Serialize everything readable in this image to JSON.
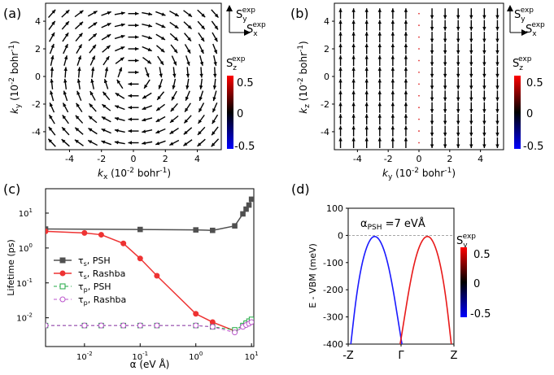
{
  "chart_data": [
    {
      "panel_label": "(a)",
      "type": "quiver",
      "xlabel_main": "k",
      "xlabel_sub": "x",
      "xlabel_unit": " (10",
      "xlabel_exp": "-2",
      "xlabel_tail": " bohr",
      "xlabel_exp2": "-1",
      "xlabel_close": ")",
      "ylabel": "k_y (10^-2 bohr^-1)",
      "xticks": [
        "-4",
        "-2",
        "0",
        "2",
        "4"
      ],
      "yticks": [
        "4",
        "2",
        "0",
        "-2",
        "-4"
      ],
      "xlim": [
        -5.5,
        5.5
      ],
      "ylim": [
        -5.3,
        5.3
      ],
      "field": "rashba",
      "spin_axes": {
        "y": "S",
        "y_sub": "y",
        "y_sup": "exp",
        "x": "S",
        "x_sub": "x",
        "x_sup": "exp"
      },
      "colorbar": {
        "label": "S",
        "sub": "z",
        "sup": "exp",
        "ticks": [
          "0.5",
          "0",
          "-0.5"
        ],
        "colors": [
          "#ff0000",
          "#000000",
          "#0000ff"
        ]
      }
    },
    {
      "panel_label": "(b)",
      "type": "quiver",
      "xlabel": "k_y (10^-2 bohr^-1)",
      "ylabel": "k_z (10^-2 bohr^-1)",
      "xticks": [
        "-4",
        "-2",
        "0",
        "2",
        "4"
      ],
      "yticks": [
        "4",
        "2",
        "0",
        "-2",
        "-4"
      ],
      "xlim": [
        -5.5,
        5.5
      ],
      "ylim": [
        -5.3,
        5.3
      ],
      "field": "psh",
      "spin_axes": {
        "y": "S",
        "y_sub": "y",
        "y_sup": "exp",
        "x": "S",
        "x_sub": "x",
        "x_sup": "exp"
      },
      "colorbar": {
        "label": "S",
        "sub": "z",
        "sup": "exp",
        "ticks": [
          "0.5",
          "0",
          "-0.5"
        ],
        "colors": [
          "#ff0000",
          "#000000",
          "#0000ff"
        ]
      }
    },
    {
      "panel_label": "(c)",
      "type": "line",
      "xlabel": "α (eV Å)",
      "ylabel": "Lifetime (ps)",
      "xscale": "log",
      "yscale": "log",
      "xlim": [
        0.002,
        11
      ],
      "ylim": [
        0.0015,
        50
      ],
      "xticks": [
        {
          "v": 0.01,
          "b": "10",
          "e": "-2"
        },
        {
          "v": 0.1,
          "b": "10",
          "e": "-1"
        },
        {
          "v": 1,
          "b": "10",
          "e": "0"
        },
        {
          "v": 10,
          "b": "10",
          "e": "1"
        }
      ],
      "yticks": [
        {
          "v": 0.01,
          "b": "10",
          "e": "-2"
        },
        {
          "v": 0.1,
          "b": "10",
          "e": "-1"
        },
        {
          "v": 1,
          "b": "10",
          "e": "0"
        },
        {
          "v": 10,
          "b": "10",
          "e": "1"
        }
      ],
      "series": [
        {
          "sym": "τ",
          "sub": "s",
          "name": ", PSH",
          "color": "#505050",
          "marker": "square",
          "filled": true,
          "dash": false,
          "x": [
            0.002,
            0.1,
            1,
            2,
            5,
            7,
            8,
            9,
            10
          ],
          "y": [
            3.5,
            3.4,
            3.3,
            3.2,
            4.3,
            9.5,
            13,
            17,
            25
          ]
        },
        {
          "sym": "τ",
          "sub": "s",
          "name": ", Rashba",
          "color": "#ee3333",
          "marker": "circle",
          "filled": true,
          "dash": false,
          "x": [
            0.002,
            0.01,
            0.02,
            0.05,
            0.1,
            0.2,
            1,
            2,
            5
          ],
          "y": [
            3.0,
            2.7,
            2.4,
            1.35,
            0.5,
            0.16,
            0.013,
            0.0075,
            0.0042
          ]
        },
        {
          "sym": "τ",
          "sub": "p",
          "name": ", PSH",
          "color": "#22aa44",
          "marker": "square",
          "filled": false,
          "dash": true,
          "x": [
            0.002,
            0.01,
            0.02,
            0.05,
            0.1,
            0.2,
            1,
            2,
            5,
            7,
            8,
            9,
            10
          ],
          "y": [
            0.006,
            0.006,
            0.006,
            0.006,
            0.006,
            0.006,
            0.006,
            0.0055,
            0.0045,
            0.006,
            0.007,
            0.008,
            0.009
          ]
        },
        {
          "sym": "τ",
          "sub": "p",
          "name": ", Rashba",
          "color": "#bb55cc",
          "marker": "circle",
          "filled": false,
          "dash": true,
          "x": [
            0.002,
            0.01,
            0.02,
            0.05,
            0.1,
            0.2,
            1,
            2,
            5,
            7,
            8,
            9,
            10
          ],
          "y": [
            0.006,
            0.006,
            0.006,
            0.006,
            0.006,
            0.006,
            0.006,
            0.0055,
            0.0038,
            0.0055,
            0.0062,
            0.0068,
            0.0075
          ]
        }
      ]
    },
    {
      "panel_label": "(d)",
      "type": "line",
      "ylabel": "E - VBM (meV)",
      "xticks": [
        "-Z",
        "Γ",
        "Z"
      ],
      "yticks": [
        "100",
        "0",
        "-100",
        "-200",
        "-300",
        "-400"
      ],
      "ylim": [
        -400,
        100
      ],
      "annotation": {
        "a": "α",
        "sub": "PSH",
        "rest": " =7 eVÅ"
      },
      "series": [
        {
          "color": "#1a1aff",
          "x": [
            -0.95,
            -0.85,
            -0.75,
            -0.65,
            -0.55,
            -0.45,
            -0.35,
            -0.25,
            -0.15,
            -0.05,
            0.05,
            0.15,
            0.25,
            0.35,
            0.45
          ],
          "y": [
            -400,
            -228,
            -111,
            -40,
            -4,
            -4,
            -36,
            -100,
            -198,
            -320,
            -440,
            -440,
            -440,
            -440,
            -440
          ]
        },
        {
          "color": "#e81a1a",
          "x": [
            -0.45,
            -0.35,
            -0.25,
            -0.15,
            -0.05,
            0.05,
            0.15,
            0.25,
            0.35,
            0.45,
            0.55,
            0.65,
            0.75,
            0.85,
            0.95
          ],
          "y": [
            -440,
            -440,
            -440,
            -440,
            -440,
            -320,
            -198,
            -100,
            -36,
            -4,
            -4,
            -40,
            -111,
            -228,
            -400
          ]
        }
      ],
      "colorbar": {
        "label": "S",
        "sub": "y",
        "sup": "exp",
        "ticks": [
          "0.5",
          "0",
          "-0.5"
        ],
        "colors": [
          "#ff0000",
          "#000000",
          "#0000ff"
        ]
      }
    }
  ]
}
